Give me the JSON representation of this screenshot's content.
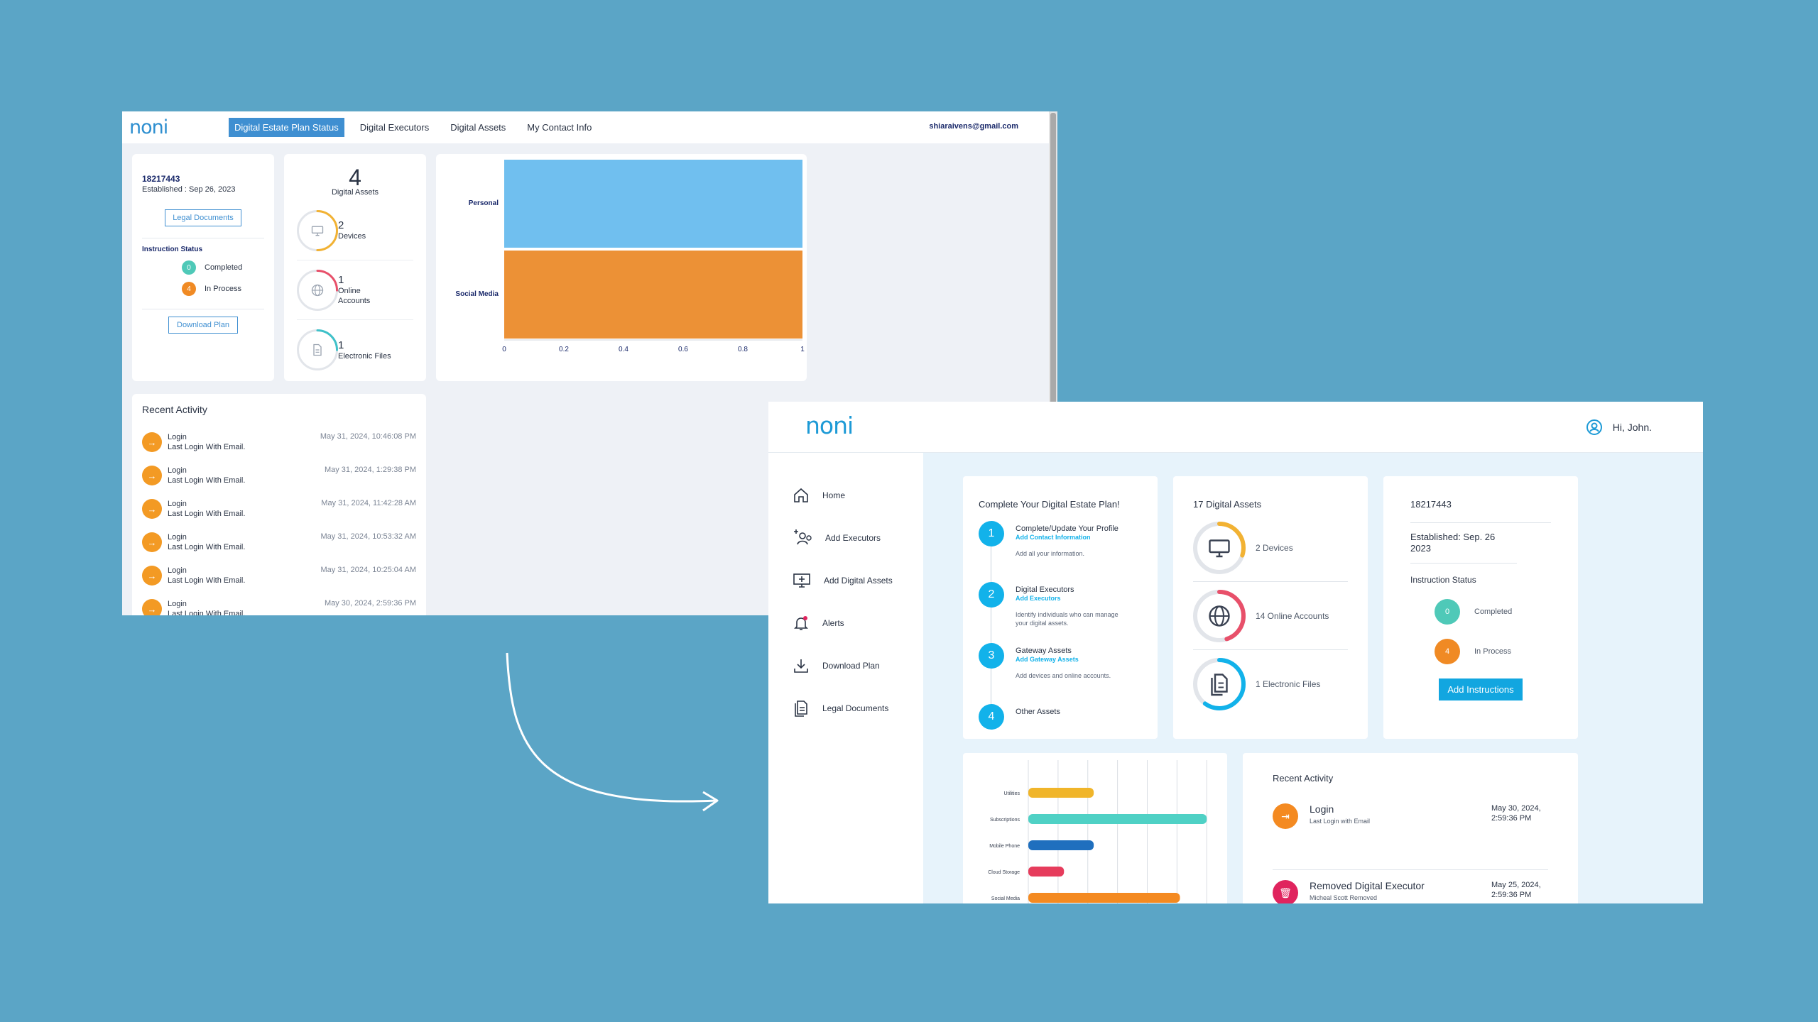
{
  "old_app": {
    "logo": "noni",
    "nav": [
      "Digital Estate Plan Status",
      "Digital Executors",
      "Digital Assets",
      "My Contact Info"
    ],
    "email": "shiaraivens@gmail.com",
    "plan_id": "18217443",
    "established": "Established : Sep 26, 2023",
    "legal_documents_btn": "Legal Documents",
    "instruction_status_label": "Instruction Status",
    "completed_count": "0",
    "completed_label": "Completed",
    "inprocess_count": "4",
    "inprocess_label": "In Process",
    "download_plan_btn": "Download Plan",
    "assets_total": "4",
    "assets_total_label": "Digital Assets",
    "assets": [
      {
        "count": "2",
        "label": "Devices",
        "icon": "monitor-icon",
        "color": "#f2b233",
        "fraction": 0.5
      },
      {
        "count": "1",
        "label": "Online Accounts",
        "icon": "globe-icon",
        "color": "#e8506a",
        "fraction": 0.25
      },
      {
        "count": "1",
        "label": "Electronic Files",
        "icon": "file-icon",
        "color": "#3fc1c9",
        "fraction": 0.25
      }
    ],
    "recent_activity_title": "Recent Activity",
    "activity": [
      {
        "title": "Login",
        "sub": "Last Login With Email.",
        "date": "May 31, 2024, 10:46:08 PM"
      },
      {
        "title": "Login",
        "sub": "Last Login With Email.",
        "date": "May 31, 2024, 1:29:38 PM"
      },
      {
        "title": "Login",
        "sub": "Last Login With Email.",
        "date": "May 31, 2024, 11:42:28 AM"
      },
      {
        "title": "Login",
        "sub": "Last Login With Email.",
        "date": "May 31, 2024, 10:53:32 AM"
      },
      {
        "title": "Login",
        "sub": "Last Login With Email.",
        "date": "May 31, 2024, 10:25:04 AM"
      },
      {
        "title": "Login",
        "sub": "Last Login With Email.",
        "date": "May 30, 2024, 2:59:36 PM"
      }
    ]
  },
  "chart_data": [
    {
      "type": "bar",
      "orientation": "horizontal",
      "categories": [
        "Personal",
        "Social Media"
      ],
      "values": [
        1,
        1
      ],
      "colors": [
        "#70bfef",
        "#ec9136"
      ],
      "xlim": [
        0,
        1
      ],
      "xticks": [
        "0",
        "0.2",
        "0.4",
        "0.6",
        "0.8",
        "1"
      ]
    },
    {
      "type": "bar",
      "orientation": "horizontal",
      "categories": [
        "Utilities",
        "Subscriptions",
        "Mobile Phone",
        "Cloud Storage",
        "Social Media"
      ],
      "values": [
        2.2,
        6,
        2.2,
        1.2,
        5.1
      ],
      "colors": [
        "#f0b52a",
        "#4fd1c5",
        "#1f6fbe",
        "#e63c5c",
        "#f48a21"
      ],
      "xlim": [
        0,
        6.4
      ]
    }
  ],
  "new_app": {
    "logo": "noni",
    "greeting": "Hi, John.",
    "sidebar": [
      "Home",
      "Add Executors",
      "Add Digital Assets",
      "Alerts",
      "Download Plan",
      "Legal Documents"
    ],
    "plan_card_title": "Complete Your Digital Estate Plan!",
    "steps": [
      {
        "num": "1",
        "title": "Complete/Update Your Profile",
        "link": "Add Contact Information",
        "desc": "Add all your information."
      },
      {
        "num": "2",
        "title": "Digital Executors",
        "link": "Add Executors",
        "desc": "Identify individuals who can manage your digital assets."
      },
      {
        "num": "3",
        "title": "Gateway Assets",
        "link": "Add Gateway Assets",
        "desc": "Add devices and online accounts."
      },
      {
        "num": "4",
        "title": "Other Assets",
        "link": "",
        "desc": ""
      }
    ],
    "digital_assets_title": "17 Digital Assets",
    "digital_assets": [
      {
        "label": "2 Devices",
        "icon": "monitor-icon",
        "color": "#f2b233",
        "fraction": 0.3
      },
      {
        "label": "14 Online Accounts",
        "icon": "globe-icon",
        "color": "#e8506a",
        "fraction": 0.45
      },
      {
        "label": "1 Electronic Files",
        "icon": "files-icon",
        "color": "#12b2ea",
        "fraction": 0.6
      }
    ],
    "plan_id": "18217443",
    "established": "Established: Sep. 26 2023",
    "instruction_status_label": "Instruction Status",
    "completed_count": "0",
    "completed_label": "Completed",
    "inprocess_count": "4",
    "inprocess_label": "In Process",
    "add_instructions_btn": "Add Instructions",
    "recent_activity_title": "Recent Activity",
    "activity": [
      {
        "title": "Login",
        "sub": "Last Login with Email",
        "date": "May 30, 2024, 2:59:36 PM",
        "color": "#f48a21",
        "icon": "login-icon"
      },
      {
        "title": "Removed Digital Executor",
        "sub": "Micheal Scott Removed",
        "date": "May 25, 2024, 2:59:36 PM",
        "color": "#e0245e",
        "icon": "trash-icon"
      }
    ]
  }
}
